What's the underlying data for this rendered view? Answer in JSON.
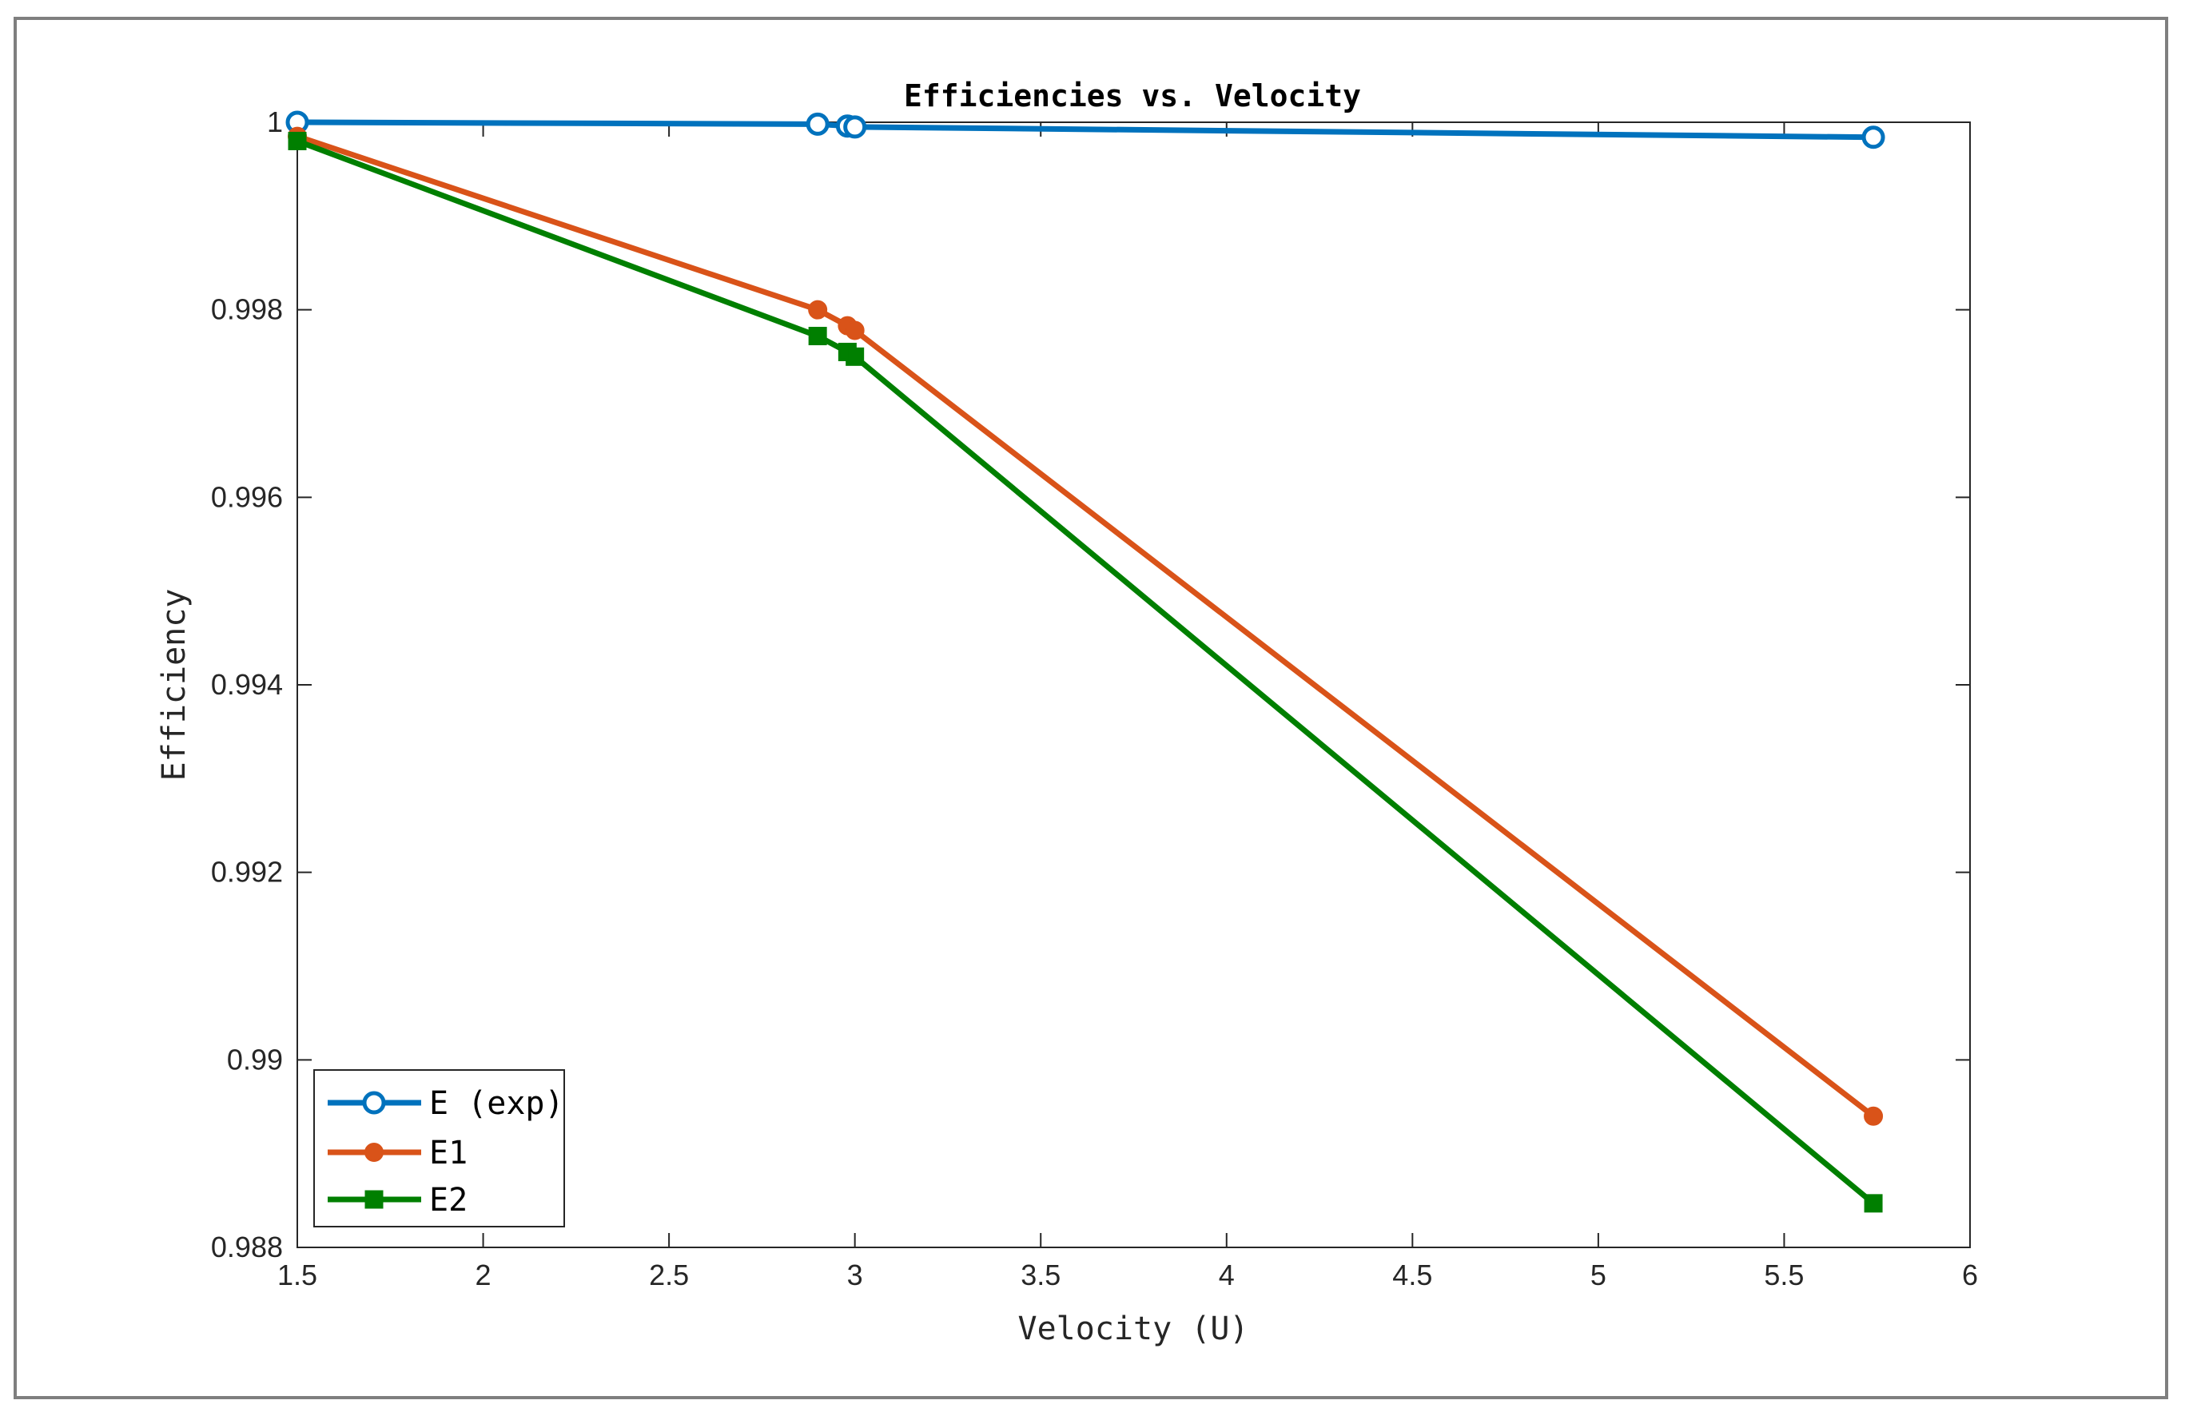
{
  "chart_data": {
    "type": "line",
    "title": "Efficiencies vs. Velocity",
    "xlabel": "Velocity (U)",
    "ylabel": "Efficiency",
    "xlim": [
      1.5,
      6
    ],
    "ylim": [
      0.988,
      1
    ],
    "xticks": [
      1.5,
      2,
      2.5,
      3,
      3.5,
      4,
      4.5,
      5,
      5.5,
      6
    ],
    "xtick_labels": [
      "1.5",
      "2",
      "2.5",
      "3",
      "3.5",
      "4",
      "4.5",
      "5",
      "5.5",
      "6"
    ],
    "yticks": [
      0.988,
      0.99,
      0.992,
      0.994,
      0.996,
      0.998,
      1
    ],
    "ytick_labels": [
      "0.988",
      "0.99",
      "0.992",
      "0.994",
      "0.996",
      "0.998",
      "1"
    ],
    "grid": false,
    "legend_position": "bottom-left",
    "series": [
      {
        "name": "E (exp)",
        "color": "#0072BD",
        "marker": "circle-open",
        "x": [
          1.5,
          2.9,
          2.98,
          3.0,
          5.74
        ],
        "y": [
          1.0,
          0.99998,
          0.99996,
          0.99995,
          0.99984
        ]
      },
      {
        "name": "E1",
        "color": "#D95319",
        "marker": "circle-filled",
        "x": [
          1.5,
          2.9,
          2.98,
          3.0,
          5.74
        ],
        "y": [
          0.99985,
          0.998,
          0.99783,
          0.99778,
          0.9894
        ]
      },
      {
        "name": "E2",
        "color": "#007F00",
        "marker": "square-filled",
        "x": [
          1.5,
          2.9,
          2.98,
          3.0,
          5.74
        ],
        "y": [
          0.9998,
          0.99772,
          0.99755,
          0.9975,
          0.98847
        ]
      }
    ]
  }
}
